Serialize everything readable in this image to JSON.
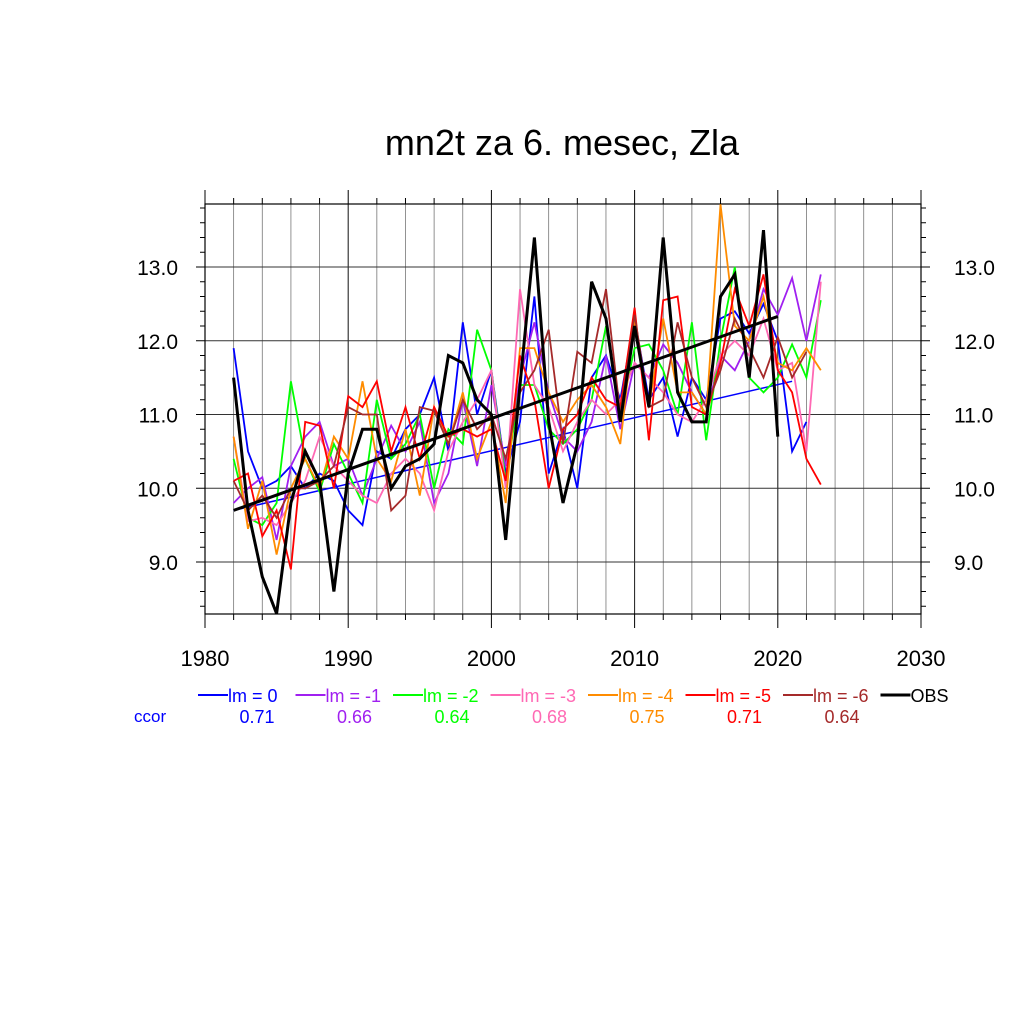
{
  "chart_data": {
    "type": "line",
    "title": "mn2t za 6. mesec, Zla",
    "xlim": [
      1980,
      2030
    ],
    "ylim": [
      8.2,
      13.9
    ],
    "x_ticks": [
      "1980",
      "1990",
      "2000",
      "2010",
      "2020",
      "2030"
    ],
    "y_ticks": [
      "9.0",
      "10.0",
      "11.0",
      "12.0",
      "13.0"
    ],
    "grid": true,
    "legend_position": "bottom",
    "ccor_label": "ccor",
    "series": [
      {
        "name": "lm = 0",
        "color": "#0000ff",
        "ccor": "0.71",
        "x_start": 1982,
        "values": [
          11.9,
          10.5,
          10.0,
          10.1,
          10.3,
          10.0,
          10.2,
          10.1,
          9.7,
          9.5,
          10.5,
          10.4,
          10.8,
          11.0,
          11.5,
          10.5,
          12.25,
          11.0,
          11.6,
          10.2,
          10.9,
          12.6,
          10.2,
          10.8,
          10.0,
          11.5,
          11.8,
          11.2,
          12.3,
          11.2,
          11.5,
          10.7,
          11.5,
          11.2,
          12.3,
          12.4,
          12.1,
          12.5,
          12.0,
          10.5,
          10.9
        ],
        "trend": [
          [
            1982,
            9.7
          ],
          [
            2021,
            11.45
          ]
        ]
      },
      {
        "name": "lm = -1",
        "color": "#a020f0",
        "ccor": "0.66",
        "x_start": 1982,
        "values": [
          9.8,
          10.0,
          10.15,
          9.3,
          10.3,
          10.7,
          10.9,
          10.3,
          10.4,
          9.9,
          10.4,
          10.85,
          10.5,
          10.9,
          9.8,
          10.2,
          11.2,
          10.3,
          11.4,
          10.3,
          11.5,
          12.25,
          11.3,
          10.7,
          10.5,
          10.9,
          11.8,
          10.8,
          11.7,
          11.5,
          11.95,
          11.7,
          11.3,
          11.0,
          11.8,
          11.6,
          12.0,
          12.7,
          12.35,
          12.85,
          12.0,
          12.9
        ]
      },
      {
        "name": "lm = -2",
        "color": "#00ff00",
        "ccor": "0.64",
        "x_start": 1982,
        "values": [
          10.4,
          9.6,
          9.5,
          9.8,
          11.45,
          10.4,
          9.95,
          10.6,
          10.2,
          9.8,
          11.2,
          10.4,
          10.6,
          11.0,
          10.0,
          10.8,
          10.6,
          12.15,
          11.6,
          10.1,
          11.4,
          11.4,
          10.8,
          10.6,
          10.8,
          11.2,
          12.2,
          11.0,
          11.9,
          11.95,
          11.6,
          11.0,
          12.25,
          10.65,
          12.0,
          13.0,
          11.5,
          11.3,
          11.5,
          11.95,
          11.5,
          12.55
        ]
      },
      {
        "name": "lm = -3",
        "color": "#ff69b4",
        "ccor": "0.68",
        "x_start": 1982,
        "values": [
          10.7,
          9.55,
          9.6,
          9.5,
          9.8,
          10.1,
          10.7,
          10.3,
          10.1,
          9.9,
          9.8,
          10.2,
          10.4,
          10.2,
          9.7,
          10.5,
          10.9,
          11.2,
          11.6,
          10.0,
          12.7,
          11.4,
          11.1,
          10.5,
          10.9,
          11.2,
          11.0,
          11.2,
          11.7,
          11.5,
          11.3,
          11.0,
          10.9,
          11.2,
          11.8,
          12.0,
          11.8,
          12.3,
          11.6,
          11.7,
          10.5,
          12.8
        ]
      },
      {
        "name": "lm = -4",
        "color": "#ff8c00",
        "ccor": "0.75",
        "x_start": 1982,
        "values": [
          10.7,
          9.45,
          10.1,
          9.1,
          10.0,
          10.4,
          10.0,
          10.7,
          10.4,
          11.45,
          10.4,
          10.1,
          10.8,
          9.9,
          11.1,
          10.6,
          11.3,
          10.4,
          10.9,
          9.8,
          11.9,
          11.9,
          11.3,
          10.9,
          11.2,
          11.4,
          11.1,
          10.6,
          12.3,
          11.1,
          12.3,
          11.3,
          11.3,
          11.0,
          13.85,
          12.2,
          12.0,
          12.6,
          11.7,
          11.6,
          11.9,
          11.6
        ]
      },
      {
        "name": "lm = -5",
        "color": "#ff0000",
        "ccor": "0.71",
        "x_start": 1982,
        "values": [
          10.1,
          10.2,
          9.35,
          9.7,
          8.9,
          10.9,
          10.85,
          10.0,
          11.25,
          11.1,
          11.45,
          10.5,
          11.1,
          10.4,
          11.1,
          10.7,
          10.8,
          10.7,
          10.8,
          10.1,
          11.8,
          11.2,
          10.0,
          10.8,
          11.0,
          11.5,
          11.2,
          11.1,
          12.45,
          10.65,
          12.55,
          12.6,
          11.1,
          11.0,
          11.7,
          12.7,
          12.2,
          12.9,
          11.6,
          11.3,
          10.4,
          10.05
        ]
      },
      {
        "name": "lm = -6",
        "color": "#a52a2a",
        "ccor": "0.64",
        "x_start": 1982,
        "values": [
          10.1,
          9.7,
          9.9,
          9.6,
          10.0,
          10.0,
          10.1,
          10.3,
          11.1,
          11.0,
          11.0,
          9.7,
          9.9,
          11.1,
          11.05,
          10.6,
          11.2,
          10.8,
          11.0,
          10.4,
          11.3,
          11.6,
          12.15,
          10.6,
          11.85,
          11.7,
          12.7,
          11.0,
          12.35,
          11.1,
          11.2,
          12.25,
          11.5,
          11.1,
          11.6,
          12.3,
          11.9,
          11.5,
          12.05,
          11.5,
          11.85
        ]
      },
      {
        "name": "OBS",
        "color": "#000000",
        "ccor": "",
        "x_start": 1982,
        "values": [
          11.5,
          9.7,
          8.8,
          8.3,
          9.8,
          10.5,
          10.1,
          8.6,
          10.2,
          10.8,
          10.8,
          10.0,
          10.3,
          10.4,
          10.6,
          11.8,
          11.7,
          11.2,
          11.0,
          9.3,
          11.4,
          13.4,
          10.9,
          9.8,
          10.6,
          12.8,
          12.3,
          10.9,
          12.2,
          11.1,
          13.4,
          11.3,
          10.9,
          10.9,
          12.6,
          12.9,
          11.5,
          13.5,
          10.7
        ],
        "trend": [
          [
            1982,
            9.7
          ],
          [
            2020,
            12.33
          ]
        ]
      }
    ]
  }
}
